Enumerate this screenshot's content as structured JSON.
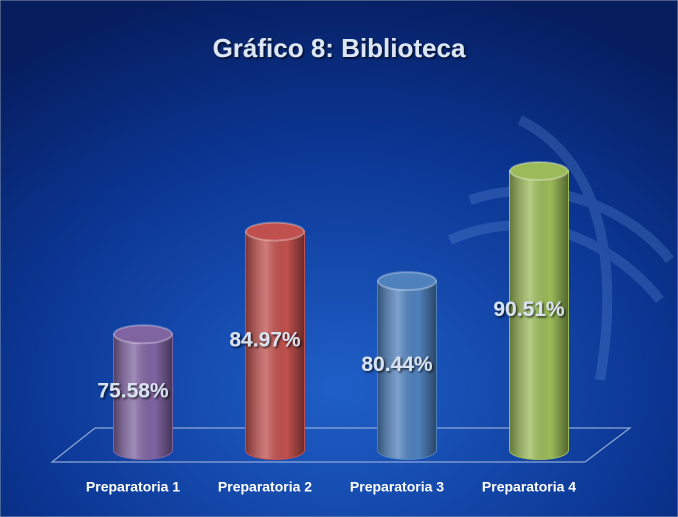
{
  "chart_data": {
    "type": "bar",
    "title": "Gráfico 8: Biblioteca",
    "categories": [
      "Preparatoria 1",
      "Preparatoria 2",
      "Preparatoria 3",
      "Preparatoria 4"
    ],
    "values": [
      75.58,
      84.97,
      80.44,
      90.51
    ],
    "value_labels": [
      "75.58%",
      "84.97%",
      "80.44%",
      "90.51%"
    ],
    "colors": [
      "#8064a2",
      "#c0504d",
      "#4f81bd",
      "#9bbb59"
    ],
    "ylim": [
      65,
      97
    ]
  }
}
